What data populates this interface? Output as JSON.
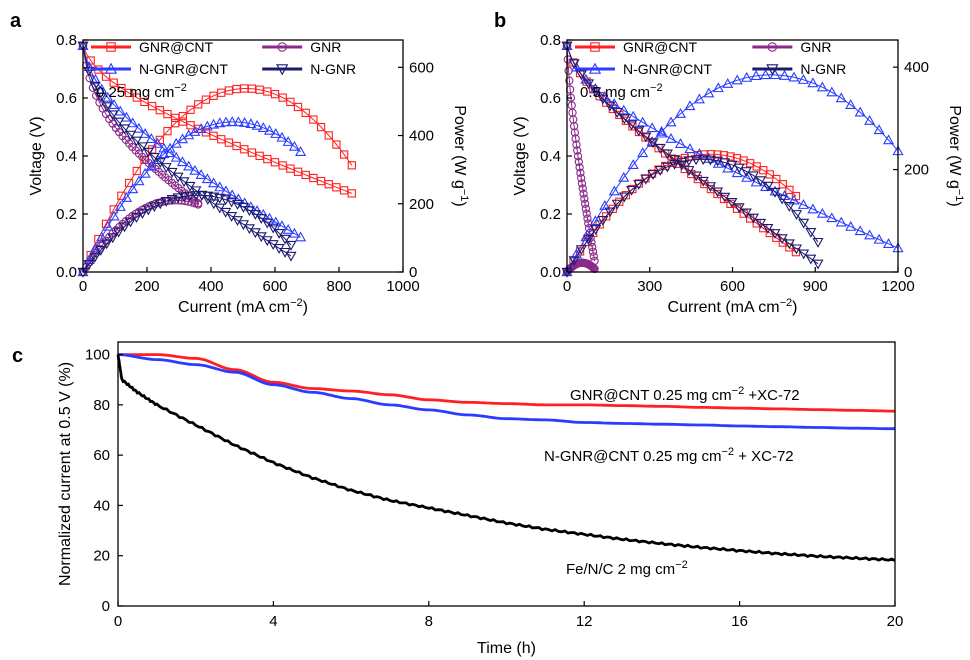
{
  "colors": {
    "gnr_cnt": "#ff2020",
    "gnr": "#8b2a8b",
    "n_gnr_cnt": "#2a3cff",
    "n_gnr": "#1a1a6e",
    "fenc": "#000000"
  },
  "chart_data": [
    {
      "panel": "a",
      "type": "line",
      "annotation": "0.25 mg cm",
      "annotation_sup": "−2",
      "xlabel": "Current (mA cm",
      "xlabel_sup": "−2",
      "xlabel_end": ")",
      "ylabel": "Voltage (V)",
      "y2label": "Power (W g",
      "y2label_sup": "−1",
      "y2label_end": ")",
      "xlim": [
        0,
        1000
      ],
      "ylim": [
        0,
        0.8
      ],
      "y2lim": [
        0,
        680
      ],
      "xticks": [
        "0",
        "200",
        "400",
        "600",
        "800",
        "1000"
      ],
      "yticks": [
        "0.0",
        "0.2",
        "0.4",
        "0.6",
        "0.8"
      ],
      "y2ticks": [
        "0",
        "200",
        "400",
        "600"
      ],
      "legend": [
        "GNR@CNT",
        "GNR",
        "N-GNR@CNT",
        "N-GNR"
      ],
      "series": [
        {
          "name": "GNR@CNT",
          "marker": "square",
          "color_key": "gnr_cnt",
          "voltage": {
            "ocv": 0.78,
            "act": 0.12,
            "j0": 18,
            "slope": 0.00038,
            "jmax": 840
          },
          "power_peak": {
            "x": 510,
            "y": 538
          }
        },
        {
          "name": "GNR",
          "marker": "circle",
          "color_key": "gnr",
          "voltage": {
            "ocv": 0.78,
            "act": 0.3,
            "j0": 12,
            "slope": 0.00055,
            "jmax": 360
          },
          "power_peak": {
            "x": 290,
            "y": 210
          }
        },
        {
          "name": "N-GNR@CNT",
          "marker": "triangle-up",
          "color_key": "n_gnr_cnt",
          "voltage": {
            "ocv": 0.78,
            "act": 0.2,
            "j0": 15,
            "slope": 0.00055,
            "jmax": 680
          },
          "power_peak": {
            "x": 470,
            "y": 440
          }
        },
        {
          "name": "N-GNR",
          "marker": "triangle-down",
          "color_key": "n_gnr",
          "voltage": {
            "ocv": 0.78,
            "act": 0.25,
            "j0": 14,
            "slope": 0.00058,
            "jmax": 650
          },
          "power_peak": {
            "x": 360,
            "y": 225
          }
        }
      ]
    },
    {
      "panel": "b",
      "type": "line",
      "annotation": "0.5 mg cm",
      "annotation_sup": "−2",
      "xlabel": "Current (mA cm",
      "xlabel_sup": "−2",
      "xlabel_end": ")",
      "ylabel": "Voltage (V)",
      "y2label": "Power (W g",
      "y2label_sup": "−1",
      "y2label_end": ")",
      "xlim": [
        0,
        1200
      ],
      "ylim": [
        0,
        0.8
      ],
      "y2lim": [
        0,
        453
      ],
      "xticks": [
        "0",
        "300",
        "600",
        "900",
        "1200"
      ],
      "yticks": [
        "0.0",
        "0.2",
        "0.4",
        "0.6",
        "0.8"
      ],
      "y2ticks": [
        "0",
        "200",
        "400"
      ],
      "legend": [
        "GNR@CNT",
        "GNR",
        "N-GNR@CNT",
        "N-GNR"
      ],
      "series": [
        {
          "name": "GNR@CNT",
          "marker": "square",
          "color_key": "gnr_cnt",
          "voltage": {
            "ocv": 0.78,
            "act": 0.12,
            "j0": 15,
            "slope": 0.00064,
            "jmax": 830
          },
          "power_peak": {
            "x": 520,
            "y": 230
          }
        },
        {
          "name": "GNR",
          "marker": "circle",
          "color_key": "gnr",
          "voltage": {
            "ocv": 0.78,
            "act": 0.4,
            "j0": 8,
            "slope": 0.0045,
            "jmax": 100
          },
          "power_peak": {
            "x": 55,
            "y": 18
          }
        },
        {
          "name": "N-GNR@CNT",
          "marker": "triangle-up",
          "color_key": "n_gnr_cnt",
          "voltage": {
            "ocv": 0.78,
            "act": 0.14,
            "j0": 18,
            "slope": 0.00038,
            "jmax": 1200
          },
          "power_peak": {
            "x": 740,
            "y": 385
          }
        },
        {
          "name": "N-GNR",
          "marker": "triangle-down",
          "color_key": "n_gnr",
          "voltage": {
            "ocv": 0.78,
            "act": 0.12,
            "j0": 16,
            "slope": 0.00062,
            "jmax": 910
          },
          "power_peak": {
            "x": 490,
            "y": 220
          }
        }
      ]
    },
    {
      "panel": "c",
      "type": "line",
      "xlabel": "Time (h)",
      "ylabel": "Normalized current at 0.5 V (%)",
      "xlim": [
        0,
        20
      ],
      "ylim": [
        0,
        105
      ],
      "xticks": [
        "0",
        "4",
        "8",
        "12",
        "16",
        "20"
      ],
      "yticks": [
        "0",
        "20",
        "40",
        "60",
        "80",
        "100"
      ],
      "series": [
        {
          "name": "GNR@CNT 0.25 mg cm−2 +XC-72",
          "label_main": "GNR@CNT 0.25 mg cm",
          "label_sup": "−2",
          "label_end": " +XC-72",
          "color_key": "gnr_cnt",
          "x": [
            0,
            1,
            2,
            3,
            4,
            5,
            6,
            7,
            8,
            9,
            10,
            11,
            12,
            13,
            14,
            15,
            16,
            17,
            18,
            19,
            20
          ],
          "y": [
            100,
            100,
            98.5,
            94,
            89,
            86.5,
            85.5,
            84,
            82,
            81,
            80.5,
            80,
            80,
            79.7,
            79.4,
            79,
            78.7,
            78.4,
            78.1,
            77.8,
            77.5
          ]
        },
        {
          "name": "N-GNR@CNT 0.25 mg cm−2 + XC-72",
          "label_main": "N-GNR@CNT 0.25 mg cm",
          "label_sup": "−2",
          "label_end": " + XC-72",
          "color_key": "n_gnr_cnt",
          "x": [
            0,
            1,
            2,
            3,
            4,
            5,
            6,
            7,
            8,
            9,
            10,
            11,
            12,
            13,
            14,
            15,
            16,
            17,
            18,
            19,
            20
          ],
          "y": [
            100,
            98,
            96,
            93,
            88,
            85,
            82.5,
            80,
            78,
            76,
            74.5,
            74,
            73,
            72.6,
            72.3,
            72,
            71.6,
            71.3,
            71,
            70.7,
            70.5
          ]
        },
        {
          "name": "Fe/N/C 2 mg cm−2",
          "label_main": "Fe/N/C 2 mg cm",
          "label_sup": "−2",
          "label_end": "",
          "color_key": "fenc",
          "x": [
            0,
            0.1,
            0.5,
            1,
            2,
            3,
            4,
            5,
            6,
            7,
            8,
            9,
            10,
            11,
            12,
            13,
            14,
            15,
            16,
            17,
            18,
            19,
            20
          ],
          "y": [
            100,
            90,
            85,
            80,
            72,
            64,
            57,
            51,
            46,
            42,
            39,
            36,
            33,
            30.5,
            28.5,
            26.5,
            24.8,
            23.3,
            22,
            20.8,
            19.8,
            19,
            18.3
          ]
        }
      ]
    }
  ]
}
